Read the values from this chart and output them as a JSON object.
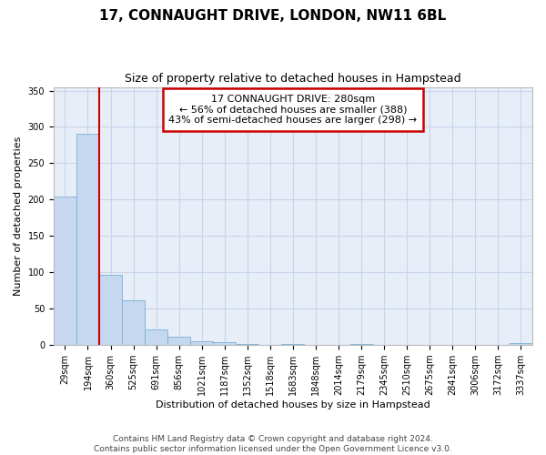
{
  "title": "17, CONNAUGHT DRIVE, LONDON, NW11 6BL",
  "subtitle": "Size of property relative to detached houses in Hampstead",
  "xlabel": "Distribution of detached houses by size in Hampstead",
  "ylabel": "Number of detached properties",
  "bar_color": "#c5d8f0",
  "bar_edge_color": "#7bafd4",
  "grid_color": "#c8d4e8",
  "background_color": "#e8eef8",
  "bin_labels": [
    "29sqm",
    "194sqm",
    "360sqm",
    "525sqm",
    "691sqm",
    "856sqm",
    "1021sqm",
    "1187sqm",
    "1352sqm",
    "1518sqm",
    "1683sqm",
    "1848sqm",
    "2014sqm",
    "2179sqm",
    "2345sqm",
    "2510sqm",
    "2675sqm",
    "2841sqm",
    "3006sqm",
    "3172sqm",
    "3337sqm"
  ],
  "bar_heights": [
    204,
    291,
    97,
    61,
    22,
    12,
    5,
    4,
    1,
    0,
    1,
    0,
    0,
    1,
    0,
    0,
    0,
    0,
    0,
    0,
    2
  ],
  "red_line_x": 1.5,
  "annotation_title": "17 CONNAUGHT DRIVE: 280sqm",
  "annotation_line1": "← 56% of detached houses are smaller (388)",
  "annotation_line2": "43% of semi-detached houses are larger (298) →",
  "vline_color": "#cc0000",
  "annotation_box_facecolor": "#ffffff",
  "annotation_border_color": "#cc0000",
  "footer_line1": "Contains HM Land Registry data © Crown copyright and database right 2024.",
  "footer_line2": "Contains public sector information licensed under the Open Government Licence v3.0.",
  "ylim": [
    0,
    355
  ],
  "yticks": [
    0,
    50,
    100,
    150,
    200,
    250,
    300,
    350
  ],
  "n_bins": 21,
  "title_fontsize": 11,
  "subtitle_fontsize": 9,
  "ylabel_fontsize": 8,
  "xlabel_fontsize": 8,
  "tick_fontsize": 7,
  "footer_fontsize": 6.5,
  "annotation_fontsize": 8
}
